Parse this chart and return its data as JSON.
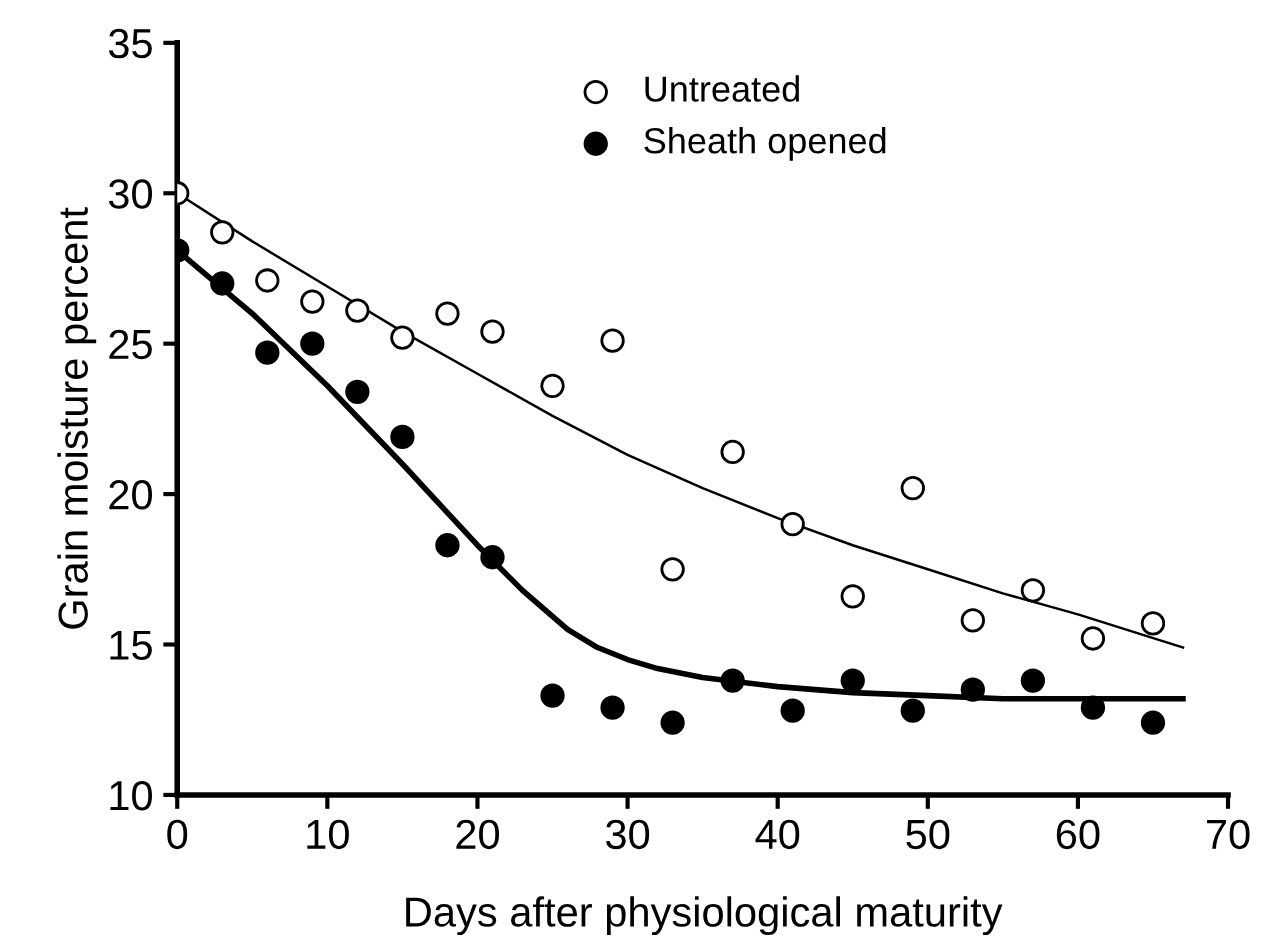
{
  "chart_data": {
    "type": "scatter",
    "xlabel": "Days after physiological maturity",
    "ylabel": "Grain moisture percent",
    "xlim": [
      0,
      70
    ],
    "ylim": [
      10,
      35
    ],
    "xticks": [
      0,
      10,
      20,
      30,
      40,
      50,
      60,
      70
    ],
    "yticks": [
      10,
      15,
      20,
      25,
      30,
      35
    ],
    "grid": false,
    "legend": "top",
    "series": [
      {
        "name": "Untreated",
        "color": "#ffffff",
        "marker": "circle",
        "x": [
          0,
          3,
          6,
          9,
          12,
          15,
          18,
          21,
          25,
          29,
          33,
          37,
          41,
          45,
          49,
          53,
          57,
          61,
          65
        ],
        "values": [
          30,
          28.7,
          27.1,
          26.4,
          26.1,
          25.2,
          26,
          25.4,
          23.6,
          25.1,
          17.5,
          21.4,
          19,
          16.6,
          20.2,
          15.8,
          16.8,
          15.2,
          15.7
        ]
      },
      {
        "name": "Sheath opened",
        "color": "#000000",
        "marker": "circle",
        "x": [
          0,
          3,
          6,
          9,
          12,
          15,
          18,
          21,
          25,
          29,
          33,
          37,
          41,
          45,
          49,
          53,
          57,
          61,
          65
        ],
        "values": [
          28.1,
          27,
          24.7,
          25,
          23.4,
          21.9,
          18.3,
          17.9,
          13.3,
          12.9,
          12.4,
          13.8,
          12.8,
          13.8,
          12.8,
          13.5,
          13.8,
          12.9,
          12.4
        ]
      },
      {
        "type": "line",
        "color": "#000000",
        "marker": "none",
        "line_style": "solid",
        "x": [
          0,
          5,
          10,
          15,
          20,
          25,
          30,
          35,
          40,
          45,
          50,
          55,
          60,
          67
        ],
        "values": [
          30,
          28.4,
          26.9,
          25.4,
          24,
          22.6,
          21.3,
          20.2,
          19.2,
          18.3,
          17.5,
          16.7,
          16,
          14.9
        ]
      },
      {
        "type": "line",
        "color": "#000000",
        "marker": "none",
        "line_style": "solid",
        "x": [
          0,
          5,
          10,
          15,
          20,
          23,
          26,
          28,
          30,
          32,
          35,
          40,
          45,
          50,
          55,
          60,
          67
        ],
        "values": [
          28.1,
          26,
          23.6,
          21,
          18.3,
          16.8,
          15.5,
          14.9,
          14.5,
          14.2,
          13.9,
          13.6,
          13.4,
          13.3,
          13.2,
          13.2,
          13.2
        ]
      }
    ]
  }
}
